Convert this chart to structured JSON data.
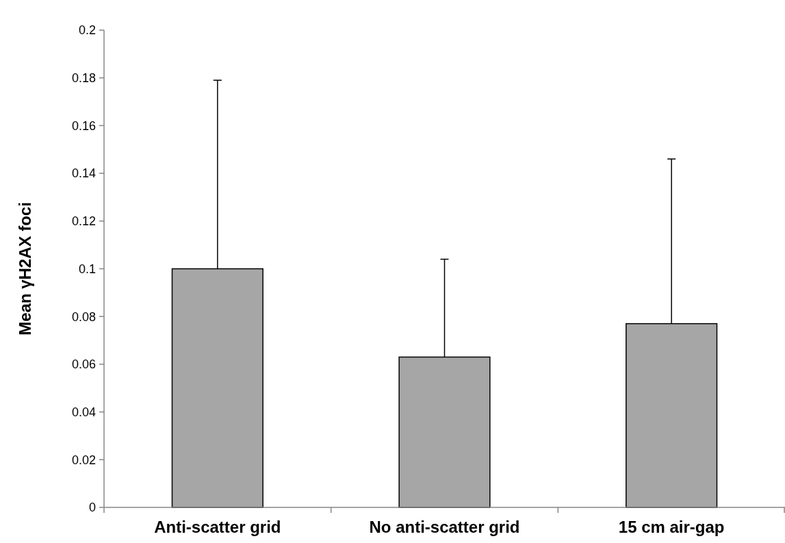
{
  "chart_data": {
    "type": "bar",
    "ylabel": "Mean γH2AX foci",
    "categories": [
      "Anti-scatter grid",
      "No anti-scatter grid",
      "15 cm air-gap"
    ],
    "values": [
      0.1,
      0.063,
      0.077
    ],
    "errors": [
      [
        0.1,
        0.179
      ],
      [
        0.063,
        0.104
      ],
      [
        0.077,
        0.146
      ]
    ],
    "color": "#a6a6a6",
    "ylim": [
      0,
      0.2
    ],
    "yticks": [
      0,
      0.02,
      0.04,
      0.06,
      0.08,
      0.1,
      0.12,
      0.14,
      0.16,
      0.18,
      0.2
    ],
    "grid": false
  }
}
